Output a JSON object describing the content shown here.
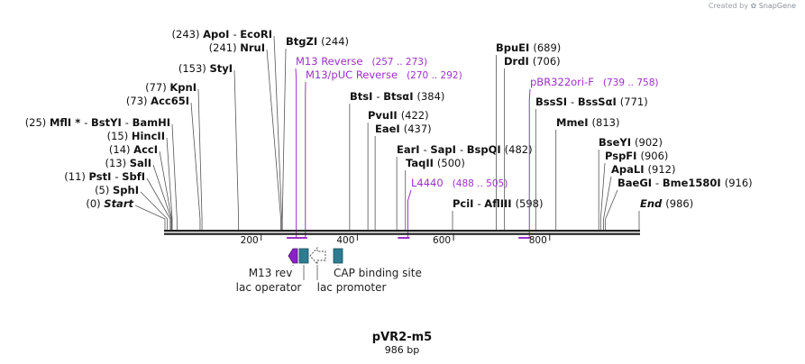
{
  "watermark": {
    "created_by": "Created by",
    "brand": "SnapGene"
  },
  "plasmid": {
    "name": "pVR2-m5",
    "length": "986 bp"
  },
  "colors": {
    "primer": "#9b30c9",
    "feature_purple": "#8b22c9",
    "feature_teal": "#2d7c92",
    "line": "#222222",
    "text": "#111111",
    "feature_text": "#222222"
  },
  "ruler": {
    "length_bp": 986,
    "ticks": [
      {
        "bp": 200,
        "label": "200"
      },
      {
        "bp": 400,
        "label": "400"
      },
      {
        "bp": 600,
        "label": "600"
      },
      {
        "bp": 800,
        "label": "800"
      }
    ]
  },
  "sites": [
    {
      "id": "start",
      "parts": [
        {
          "t": "(0)",
          "w": "n"
        },
        {
          "t": "Start",
          "w": "bi"
        }
      ],
      "bp": 0
    },
    {
      "id": "sphi",
      "parts": [
        {
          "t": "(5)",
          "w": "n"
        },
        {
          "t": "SphI",
          "w": "b"
        }
      ],
      "bp": 5
    },
    {
      "id": "psti",
      "parts": [
        {
          "t": "(11)",
          "w": "n"
        },
        {
          "t": "PstI",
          "w": "b"
        },
        {
          "t": "-",
          "w": "n"
        },
        {
          "t": "SbfI",
          "w": "b"
        }
      ],
      "bp": 11
    },
    {
      "id": "sali",
      "parts": [
        {
          "t": "(13)",
          "w": "n"
        },
        {
          "t": "SalI",
          "w": "b"
        }
      ],
      "bp": 13
    },
    {
      "id": "acci",
      "parts": [
        {
          "t": "(14)",
          "w": "n"
        },
        {
          "t": "AccI",
          "w": "b"
        }
      ],
      "bp": 14
    },
    {
      "id": "hincii",
      "parts": [
        {
          "t": "(15)",
          "w": "n"
        },
        {
          "t": "HincII",
          "w": "b"
        }
      ],
      "bp": 15
    },
    {
      "id": "mfli",
      "parts": [
        {
          "t": "(25)",
          "w": "n"
        },
        {
          "t": "MflI *",
          "w": "b"
        },
        {
          "t": "-",
          "w": "n"
        },
        {
          "t": "BstYI",
          "w": "b"
        },
        {
          "t": "-",
          "w": "n"
        },
        {
          "t": "BamHI",
          "w": "b"
        }
      ],
      "bp": 25
    },
    {
      "id": "acc65i",
      "parts": [
        {
          "t": "(73)",
          "w": "n"
        },
        {
          "t": "Acc65I",
          "w": "b"
        }
      ],
      "bp": 73
    },
    {
      "id": "kpni",
      "parts": [
        {
          "t": "(77)",
          "w": "n"
        },
        {
          "t": "KpnI",
          "w": "b"
        }
      ],
      "bp": 77
    },
    {
      "id": "styi",
      "parts": [
        {
          "t": "(153)",
          "w": "n"
        },
        {
          "t": "StyI",
          "w": "b"
        }
      ],
      "bp": 153
    },
    {
      "id": "nrui",
      "parts": [
        {
          "t": "(241)",
          "w": "n"
        },
        {
          "t": "NruI",
          "w": "b"
        }
      ],
      "bp": 241
    },
    {
      "id": "apoi",
      "parts": [
        {
          "t": "(243)",
          "w": "n"
        },
        {
          "t": "ApoI",
          "w": "b"
        },
        {
          "t": "-",
          "w": "n"
        },
        {
          "t": "EcoRI",
          "w": "b"
        }
      ],
      "bp": 243
    },
    {
      "id": "btgzi",
      "parts": [
        {
          "t": "BtgZI",
          "w": "b"
        },
        {
          "t": "(244)",
          "w": "n"
        }
      ],
      "bp": 244
    },
    {
      "id": "btsi",
      "parts": [
        {
          "t": "BtsI",
          "w": "b"
        },
        {
          "t": "-",
          "w": "n"
        },
        {
          "t": "BtsαI",
          "w": "b"
        },
        {
          "t": "(384)",
          "w": "n"
        }
      ],
      "bp": 384
    },
    {
      "id": "pvuii",
      "parts": [
        {
          "t": "PvuII",
          "w": "b"
        },
        {
          "t": "(422)",
          "w": "n"
        }
      ],
      "bp": 422
    },
    {
      "id": "eaei",
      "parts": [
        {
          "t": "EaeI",
          "w": "b"
        },
        {
          "t": "(437)",
          "w": "n"
        }
      ],
      "bp": 437
    },
    {
      "id": "eari",
      "parts": [
        {
          "t": "EarI",
          "w": "b"
        },
        {
          "t": "-",
          "w": "n"
        },
        {
          "t": "SapI",
          "w": "b"
        },
        {
          "t": "-",
          "w": "n"
        },
        {
          "t": "BspQI",
          "w": "b"
        },
        {
          "t": "(482)",
          "w": "n"
        }
      ],
      "bp": 482
    },
    {
      "id": "taqii",
      "parts": [
        {
          "t": "TaqII",
          "w": "b"
        },
        {
          "t": "(500)",
          "w": "n"
        }
      ],
      "bp": 500
    },
    {
      "id": "pcii",
      "parts": [
        {
          "t": "PciI",
          "w": "b"
        },
        {
          "t": "-",
          "w": "n"
        },
        {
          "t": "AflIII",
          "w": "b"
        },
        {
          "t": "(598)",
          "w": "n"
        }
      ],
      "bp": 598
    },
    {
      "id": "bpuei",
      "parts": [
        {
          "t": "BpuEI",
          "w": "b"
        },
        {
          "t": "(689)",
          "w": "n"
        }
      ],
      "bp": 689
    },
    {
      "id": "drdi",
      "parts": [
        {
          "t": "DrdI",
          "w": "b"
        },
        {
          "t": "(706)",
          "w": "n"
        }
      ],
      "bp": 706
    },
    {
      "id": "bsssi",
      "parts": [
        {
          "t": "BssSI",
          "w": "b"
        },
        {
          "t": "-",
          "w": "n"
        },
        {
          "t": "BssSαI",
          "w": "b"
        },
        {
          "t": "(771)",
          "w": "n"
        }
      ],
      "bp": 771
    },
    {
      "id": "mmei",
      "parts": [
        {
          "t": "MmeI",
          "w": "b"
        },
        {
          "t": "(813)",
          "w": "n"
        }
      ],
      "bp": 813
    },
    {
      "id": "bseyi",
      "parts": [
        {
          "t": "BseYI",
          "w": "b"
        },
        {
          "t": "(902)",
          "w": "n"
        }
      ],
      "bp": 902
    },
    {
      "id": "pspfi",
      "parts": [
        {
          "t": "PspFI",
          "w": "b"
        },
        {
          "t": "(906)",
          "w": "n"
        }
      ],
      "bp": 906
    },
    {
      "id": "apali",
      "parts": [
        {
          "t": "ApaLI",
          "w": "b"
        },
        {
          "t": "(912)",
          "w": "n"
        }
      ],
      "bp": 912
    },
    {
      "id": "baegi",
      "parts": [
        {
          "t": "BaeGI",
          "w": "b"
        },
        {
          "t": "-",
          "w": "n"
        },
        {
          "t": "Bme1580I",
          "w": "b"
        },
        {
          "t": "(916)",
          "w": "n"
        }
      ],
      "bp": 916
    },
    {
      "id": "end",
      "parts": [
        {
          "t": "End",
          "w": "bi"
        },
        {
          "t": "(986)",
          "w": "n"
        }
      ],
      "bp": 986
    }
  ],
  "primers": [
    {
      "id": "m13-reverse",
      "name": "M13 Reverse",
      "range": "(257 .. 273)",
      "start": 257,
      "end": 273
    },
    {
      "id": "m13-puc-reverse",
      "name": "M13/pUC Reverse",
      "range": "(270 .. 292)",
      "start": 270,
      "end": 292
    },
    {
      "id": "l4440",
      "name": "L4440",
      "range": "(488 .. 505)",
      "start": 488,
      "end": 505
    },
    {
      "id": "pbr322ori-f",
      "name": "pBR322ori-F",
      "range": "(739 .. 758)",
      "start": 739,
      "end": 758
    }
  ],
  "features": [
    {
      "id": "m13-rev",
      "label": "M13 rev",
      "kind": "purple-arrow-left"
    },
    {
      "id": "lac-operator",
      "label": "lac operator",
      "kind": "teal-box"
    },
    {
      "id": "lac-promoter",
      "label": "lac promoter",
      "kind": "white-arrow-left"
    },
    {
      "id": "cap-binding-site",
      "label": "CAP binding site",
      "kind": "teal-box"
    }
  ]
}
